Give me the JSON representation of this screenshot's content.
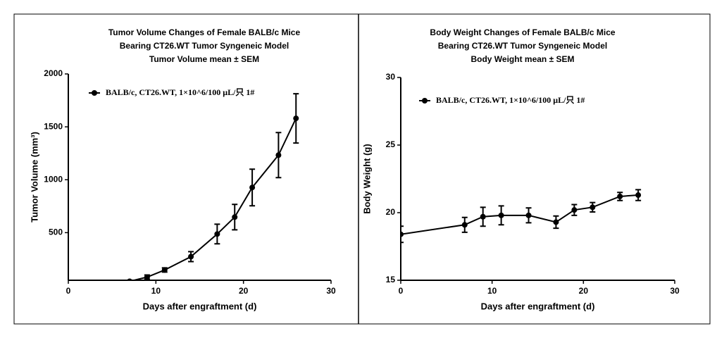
{
  "chart_data": [
    {
      "type": "line",
      "title": [
        "Tumor Volume Changes of Female BALB/c Mice",
        "Bearing CT26.WT Tumor Syngeneic Model",
        "Tumor Volume mean ± SEM"
      ],
      "xlabel": "Days after engraftment (d)",
      "ylabel": "Tumor Volume (mm³)",
      "x": [
        7,
        9,
        11,
        14,
        17,
        19,
        21,
        24,
        26
      ],
      "series": [
        {
          "name": "BALB/c, CT26.WT, 1×10^6/100 μL/只 1#",
          "color": "#000000",
          "values": [
            40,
            80,
            147,
            273,
            487,
            647,
            927,
            1233,
            1580
          ],
          "errors": [
            10,
            20,
            20,
            47,
            93,
            120,
            173,
            213,
            233
          ]
        }
      ],
      "xlim": [
        0,
        30
      ],
      "xticks": [
        0,
        10,
        20,
        30
      ],
      "ylim": [
        50,
        2000
      ],
      "yticks": [
        500,
        1000,
        1500,
        2000
      ]
    },
    {
      "type": "line",
      "title": [
        "Body Weight Changes of  Female BALB/c Mice",
        "Bearing CT26.WT Tumor Syngeneic Model",
        "Body Weight  mean ± SEM"
      ],
      "xlabel": "Days after engraftment (d)",
      "ylabel": "Body Weight (g)",
      "x": [
        0,
        7,
        9,
        11,
        14,
        17,
        19,
        21,
        24,
        26
      ],
      "series": [
        {
          "name": "BALB/c, CT26.WT, 1×10^6/100 μL/只 1#",
          "color": "#000000",
          "values": [
            18.4,
            19.1,
            19.7,
            19.8,
            19.8,
            19.3,
            20.2,
            20.4,
            21.2,
            21.3
          ],
          "errors": [
            0.6,
            0.55,
            0.7,
            0.7,
            0.55,
            0.45,
            0.4,
            0.35,
            0.3,
            0.4
          ]
        }
      ],
      "xlim": [
        0,
        30
      ],
      "xticks": [
        0,
        10,
        20,
        30
      ],
      "ylim": [
        15,
        30
      ],
      "yticks": [
        15,
        20,
        25,
        30
      ]
    }
  ]
}
